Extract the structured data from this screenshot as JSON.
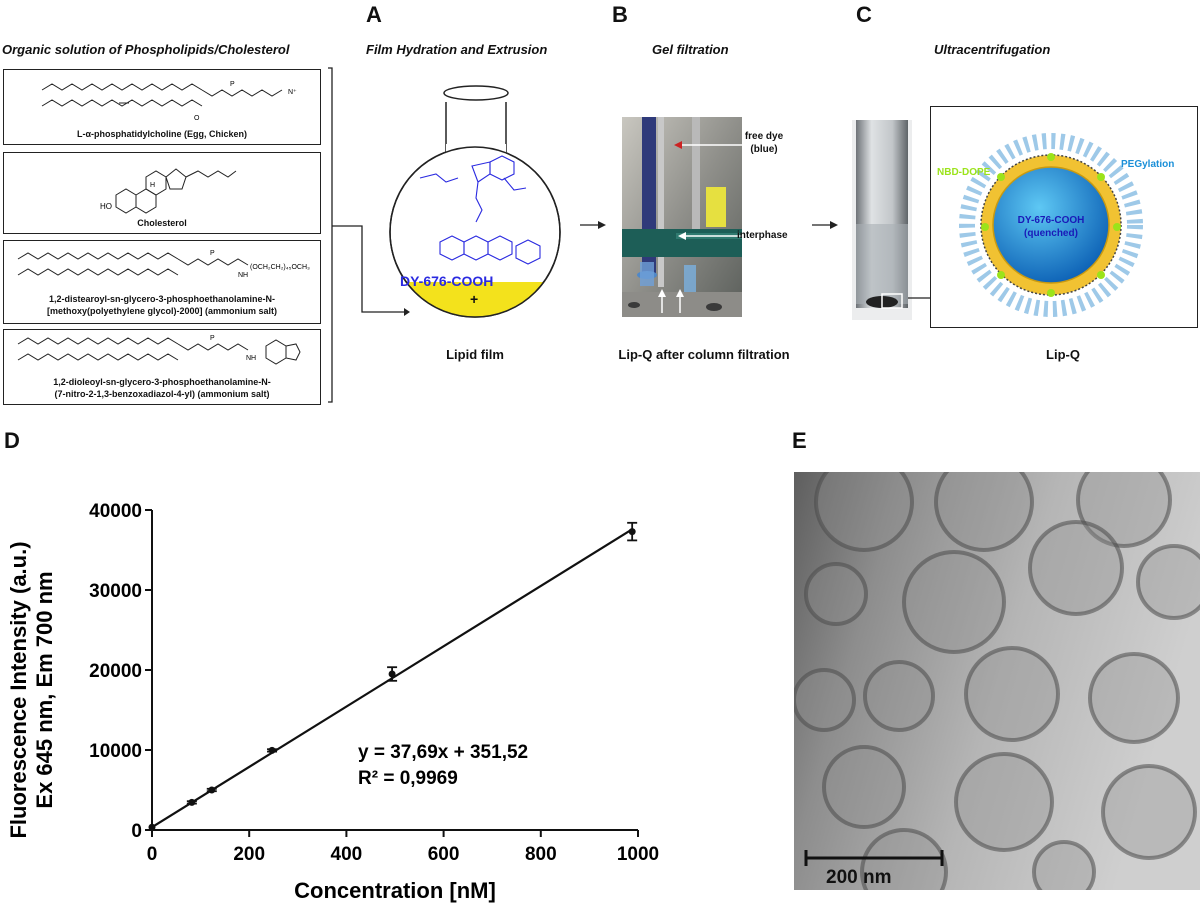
{
  "panel_a": {
    "letter": "A",
    "left_title": "Organic solution of Phospholipids/Cholesterol",
    "title": "Film Hydration and Extrusion",
    "molecules": [
      {
        "name": "L-α-phosphatidylcholine (Egg, Chicken)"
      },
      {
        "name": "Cholesterol",
        "label_ho": "HO",
        "label_h": "H"
      },
      {
        "name_line1": "1,2-distearoyl-sn-glycero-3-phosphoethanolamine-N-",
        "name_line2": "[methoxy(polyethylene glycol)-2000] (ammonium salt)",
        "peg_label": "(OCH₂CH₂)₄₅OCH₃",
        "nh_label": "NH"
      },
      {
        "name_line1": "1,2-dioleoyl-sn-glycero-3-phosphoethanolamine-N-",
        "name_line2": "(7-nitro-2-1,3-benzoxadiazol-4-yl) (ammonium salt)",
        "nh_label": "NH"
      }
    ],
    "dye_label": "DY-676-COOH",
    "plus": "+",
    "caption": "Lipid film",
    "colors": {
      "dye": "#2a2ae0",
      "film": "#f3e21c"
    }
  },
  "panel_b": {
    "letter": "B",
    "title": "Gel filtration",
    "label_free_dye": "free dye",
    "label_free_dye_2": "(blue)",
    "label_interphase": "interphase",
    "caption": "Lip-Q after column filtration"
  },
  "panel_c": {
    "letter": "C",
    "title": "Ultracentrifugation",
    "label_nbd": "NBD-DOPE",
    "label_peg": "PEGylation",
    "core_line1": "DY-676-COOH",
    "core_line2": "(quenched)",
    "caption": "Lip-Q",
    "colors": {
      "nbd": "#9be31a",
      "peg": "#1a8fd8",
      "shell": "#f1c232",
      "core": "#1683d8"
    }
  },
  "panel_d": {
    "letter": "D",
    "equation": "y = 37,69x + 351,52",
    "r_squared": "R² = 0,9969",
    "chart_data": {
      "type": "scatter",
      "xlabel": "Concentration [nM]",
      "ylabel_line1": "Fluorescence Intensity (a.u.)",
      "ylabel_line2": "Ex 645 nm, Em 700 nm",
      "xlim": [
        0,
        1000
      ],
      "ylim": [
        0,
        40000
      ],
      "x_ticks": [
        0,
        200,
        400,
        600,
        800,
        1000
      ],
      "y_ticks": [
        0,
        10000,
        20000,
        30000,
        40000
      ],
      "x_tick_labels": [
        "0",
        "200",
        "400",
        "600",
        "800",
        "1000"
      ],
      "y_tick_labels": [
        "0",
        "10000",
        "20000",
        "30000",
        "40000"
      ],
      "points": [
        {
          "x": 0,
          "y": 350,
          "err": 0
        },
        {
          "x": 82,
          "y": 3450,
          "err": 150
        },
        {
          "x": 123,
          "y": 5000,
          "err": 150
        },
        {
          "x": 247,
          "y": 9950,
          "err": 150
        },
        {
          "x": 494,
          "y": 19500,
          "err": 850
        },
        {
          "x": 988,
          "y": 37300,
          "err": 1100
        }
      ],
      "fit": {
        "slope": 37.69,
        "intercept": 351.52
      },
      "grid": false
    }
  },
  "panel_e": {
    "letter": "E",
    "scale_label": "200 nm"
  }
}
